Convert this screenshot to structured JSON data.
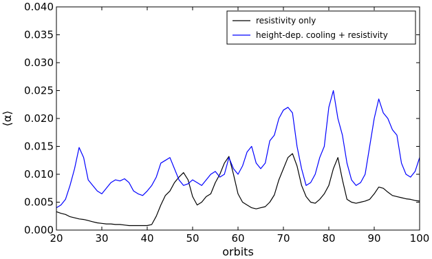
{
  "chart_data": {
    "type": "line",
    "xlabel": "orbits",
    "ylabel": "⟨α⟩",
    "xlim": [
      20,
      100
    ],
    "ylim": [
      0.0,
      0.04
    ],
    "x_ticks": [
      20,
      30,
      40,
      50,
      60,
      70,
      80,
      90,
      100
    ],
    "x_tick_labels": [
      "20",
      "30",
      "40",
      "50",
      "60",
      "70",
      "80",
      "90",
      "100"
    ],
    "y_ticks": [
      0.0,
      0.005,
      0.01,
      0.015,
      0.02,
      0.025,
      0.03,
      0.035,
      0.04
    ],
    "y_tick_labels": [
      "0.000",
      "0.005",
      "0.010",
      "0.015",
      "0.020",
      "0.025",
      "0.030",
      "0.035",
      "0.040"
    ],
    "grid": false,
    "legend_position": "top-right",
    "series": [
      {
        "name": "resistivity only",
        "color": "#000000",
        "x": [
          20,
          21,
          22,
          23,
          24,
          25,
          26,
          27,
          28,
          29,
          30,
          31,
          32,
          33,
          34,
          35,
          36,
          37,
          38,
          39,
          40,
          41,
          42,
          43,
          44,
          45,
          46,
          47,
          48,
          49,
          50,
          51,
          52,
          53,
          54,
          55,
          56,
          57,
          58,
          59,
          60,
          61,
          62,
          63,
          64,
          65,
          66,
          67,
          68,
          69,
          70,
          71,
          72,
          73,
          74,
          75,
          76,
          77,
          78,
          79,
          80,
          81,
          82,
          83,
          84,
          85,
          86,
          87,
          88,
          89,
          90,
          91,
          92,
          93,
          94,
          95,
          96,
          97,
          98,
          99,
          100
        ],
        "y": [
          0.0033,
          0.003,
          0.0028,
          0.0024,
          0.0022,
          0.002,
          0.0019,
          0.0017,
          0.0015,
          0.0013,
          0.0012,
          0.0011,
          0.0011,
          0.001,
          0.001,
          0.0009,
          0.0008,
          0.0008,
          0.0008,
          0.0008,
          0.0008,
          0.001,
          0.0025,
          0.0045,
          0.0062,
          0.007,
          0.0085,
          0.0095,
          0.0103,
          0.009,
          0.006,
          0.0045,
          0.005,
          0.006,
          0.0065,
          0.0085,
          0.01,
          0.012,
          0.0132,
          0.01,
          0.0065,
          0.005,
          0.0045,
          0.004,
          0.0038,
          0.004,
          0.0042,
          0.005,
          0.0063,
          0.009,
          0.011,
          0.013,
          0.0137,
          0.0115,
          0.008,
          0.006,
          0.005,
          0.0048,
          0.0055,
          0.0065,
          0.008,
          0.011,
          0.013,
          0.009,
          0.0055,
          0.005,
          0.0048,
          0.005,
          0.0052,
          0.0055,
          0.0065,
          0.0077,
          0.0075,
          0.0068,
          0.0062,
          0.006,
          0.0058,
          0.0056,
          0.0055,
          0.0053,
          0.0052
        ]
      },
      {
        "name": "height-dep. cooling + resistivity",
        "color": "#0000ff",
        "x": [
          20,
          21,
          22,
          23,
          24,
          25,
          26,
          27,
          28,
          29,
          30,
          31,
          32,
          33,
          34,
          35,
          36,
          37,
          38,
          39,
          40,
          41,
          42,
          43,
          44,
          45,
          46,
          47,
          48,
          49,
          50,
          51,
          52,
          53,
          54,
          55,
          56,
          57,
          58,
          59,
          60,
          61,
          62,
          63,
          64,
          65,
          66,
          67,
          68,
          69,
          70,
          71,
          72,
          73,
          74,
          75,
          76,
          77,
          78,
          79,
          80,
          81,
          82,
          83,
          84,
          85,
          86,
          87,
          88,
          89,
          90,
          91,
          92,
          93,
          94,
          95,
          96,
          97,
          98,
          99,
          100
        ],
        "y": [
          0.004,
          0.0045,
          0.0055,
          0.008,
          0.011,
          0.0148,
          0.013,
          0.009,
          0.008,
          0.007,
          0.0065,
          0.0075,
          0.0085,
          0.009,
          0.0088,
          0.0092,
          0.0085,
          0.007,
          0.0065,
          0.0062,
          0.007,
          0.008,
          0.0095,
          0.012,
          0.0125,
          0.013,
          0.011,
          0.009,
          0.008,
          0.0083,
          0.009,
          0.0085,
          0.008,
          0.009,
          0.01,
          0.0105,
          0.0095,
          0.01,
          0.013,
          0.011,
          0.01,
          0.0115,
          0.014,
          0.015,
          0.012,
          0.011,
          0.012,
          0.016,
          0.017,
          0.02,
          0.0215,
          0.022,
          0.021,
          0.015,
          0.011,
          0.008,
          0.0085,
          0.01,
          0.013,
          0.015,
          0.022,
          0.025,
          0.02,
          0.017,
          0.012,
          0.009,
          0.008,
          0.0085,
          0.01,
          0.015,
          0.02,
          0.0235,
          0.021,
          0.02,
          0.018,
          0.017,
          0.012,
          0.01,
          0.0095,
          0.0105,
          0.013
        ]
      }
    ]
  }
}
